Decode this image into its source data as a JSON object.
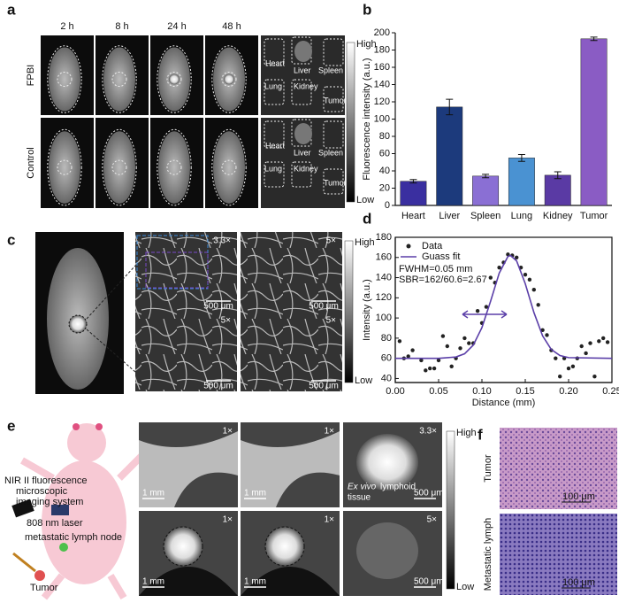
{
  "panel_a": {
    "label": "a",
    "times": [
      "2 h",
      "8 h",
      "24 h",
      "48 h"
    ],
    "rows": [
      "FPBI",
      "Control"
    ],
    "organs": [
      [
        "Heart",
        "Liver",
        "Spleen",
        "Lung",
        "Kidney",
        "Tumor"
      ],
      [
        "Heart",
        "Liver",
        "Spleen",
        "Lung",
        "Kidney",
        "Tumor"
      ]
    ],
    "colorbar": [
      "High",
      "Low"
    ]
  },
  "panel_c": {
    "label": "c",
    "magnifications": [
      "3.3×",
      "5×",
      "5×",
      "5×"
    ],
    "scale_bars": [
      "500 μm",
      "500 μm",
      "500 μm",
      "500 μm"
    ],
    "colorbar": [
      "High",
      "Low"
    ]
  },
  "panel_e": {
    "label": "e",
    "system": [
      "NIR II fluorescence",
      "microscopic",
      "imaging system"
    ],
    "laser": "808 nm laser",
    "node": "metastatic lymph node",
    "tumor": "Tumor",
    "magnifications": [
      "1×",
      "1×",
      "3.3×",
      "1×",
      "1×",
      "5×"
    ],
    "scale_bars": [
      "1 mm",
      "1 mm",
      "500 μm",
      "1 mm",
      "1 mm",
      "500 μm"
    ],
    "ex_vivo": [
      "Ex vivo",
      "lymphoid",
      "tissue"
    ],
    "colorbar": [
      "High",
      "Low"
    ]
  },
  "panel_f": {
    "label": "f",
    "rows": [
      "Tumor",
      "Metastatic lymph"
    ],
    "scale_bars": [
      "100 μm",
      "100 μm"
    ]
  },
  "chart_data": [
    {
      "type": "bar",
      "label": "b",
      "ylabel": "Fluorescence intensity (a.u.)",
      "categories": [
        "Heart",
        "Liver",
        "Spleen",
        "Lung",
        "Kidney",
        "Tumor"
      ],
      "values": [
        28,
        114,
        34,
        55,
        35,
        193
      ],
      "errors": [
        2,
        9,
        2,
        4,
        4,
        2
      ],
      "colors": [
        "#3a2fa0",
        "#1c3a7c",
        "#8a6fd4",
        "#4a92d2",
        "#5a3aa4",
        "#8a5cc4"
      ],
      "ylim": [
        0,
        200
      ],
      "yticks": [
        0,
        20,
        40,
        60,
        80,
        100,
        120,
        140,
        160,
        180,
        200
      ]
    },
    {
      "type": "scatter",
      "label": "d",
      "xlabel": "Distance (mm)",
      "ylabel": "Intensity (a.u.)",
      "annotations": [
        "FWHM=0.05 mm",
        "SBR=162/60.6=2.67"
      ],
      "series": [
        {
          "name": "Data",
          "color": "#222222",
          "x": [
            0.005,
            0.01,
            0.015,
            0.02,
            0.03,
            0.035,
            0.04,
            0.045,
            0.05,
            0.055,
            0.06,
            0.065,
            0.07,
            0.075,
            0.08,
            0.085,
            0.09,
            0.095,
            0.1,
            0.105,
            0.11,
            0.115,
            0.12,
            0.125,
            0.13,
            0.135,
            0.14,
            0.145,
            0.15,
            0.155,
            0.16,
            0.165,
            0.17,
            0.175,
            0.18,
            0.185,
            0.19,
            0.195,
            0.2,
            0.205,
            0.21,
            0.215,
            0.22,
            0.225,
            0.23,
            0.235,
            0.24,
            0.245
          ],
          "values": [
            77,
            60,
            62,
            68,
            58,
            48,
            50,
            50,
            58,
            82,
            72,
            52,
            60,
            70,
            80,
            75,
            75,
            107,
            95,
            111,
            140,
            135,
            150,
            155,
            163,
            162,
            160,
            150,
            143,
            138,
            128,
            113,
            88,
            83,
            68,
            60,
            42,
            60,
            50,
            52,
            60,
            72,
            65,
            75,
            42,
            77,
            80,
            76
          ]
        },
        {
          "name": "Guass fit",
          "color": "#5b3fa8",
          "kind": "line",
          "x": [
            0,
            0.05,
            0.07,
            0.08,
            0.09,
            0.1,
            0.11,
            0.12,
            0.13,
            0.133,
            0.14,
            0.15,
            0.16,
            0.17,
            0.18,
            0.19,
            0.2,
            0.25
          ],
          "values": [
            60,
            60,
            61.3,
            64.5,
            73.1,
            90.5,
            116.7,
            144.6,
            161,
            162,
            156.6,
            134,
            105.4,
            82.3,
            68.8,
            62.8,
            60.7,
            60
          ]
        }
      ],
      "xlim": [
        0,
        0.25
      ],
      "xticks": [
        {
          "value": 0,
          "label": "0.00"
        },
        {
          "value": 0.05,
          "label": "0.05"
        },
        {
          "value": 0.1,
          "label": "0.10"
        },
        {
          "value": 0.15,
          "label": "0.15"
        },
        {
          "value": 0.2,
          "label": "0.20"
        },
        {
          "value": 0.25,
          "label": "0.25"
        }
      ],
      "ylim": [
        36,
        180
      ],
      "yticks": [
        40,
        60,
        80,
        100,
        120,
        140,
        160,
        180
      ]
    }
  ]
}
